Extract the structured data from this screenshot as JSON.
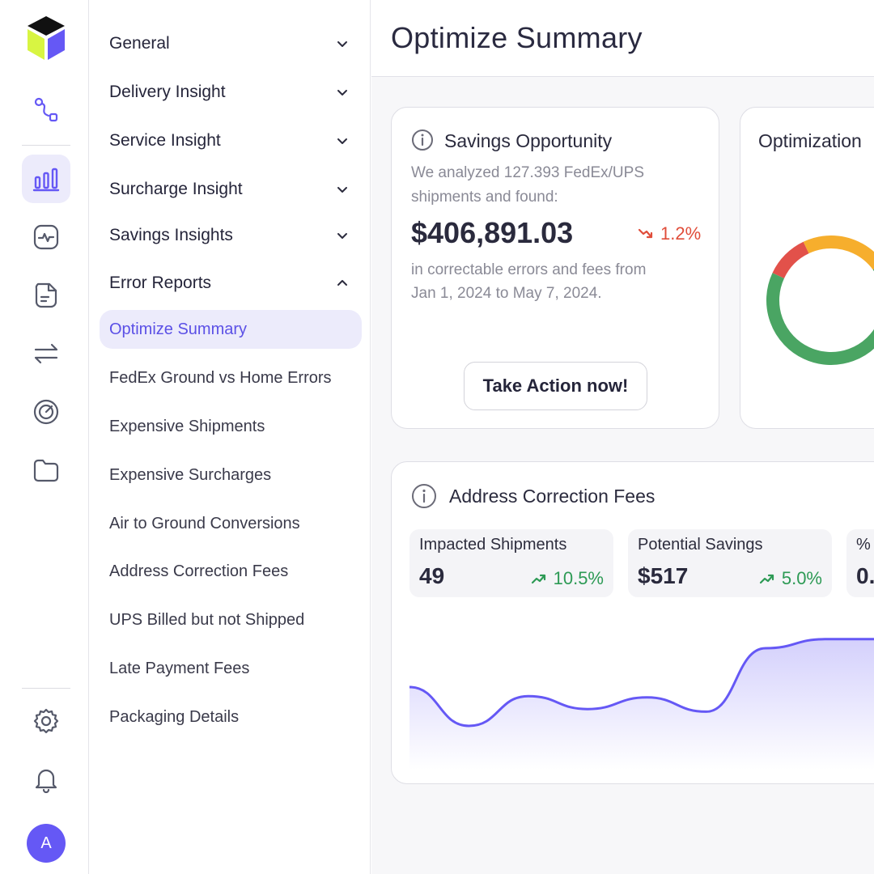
{
  "app": {
    "avatar_initial": "A",
    "accent": "#6558f5"
  },
  "rail": {
    "top_icons": [
      "logo-icon",
      "route-icon"
    ],
    "main_icons": [
      "bar-chart-icon",
      "activity-icon",
      "document-icon",
      "transfer-icon",
      "target-icon",
      "folder-icon"
    ],
    "bottom_icons": [
      "gear-icon",
      "bell-icon"
    ],
    "active": "bar-chart-icon"
  },
  "nav": {
    "sections": [
      {
        "label": "General",
        "expanded": false
      },
      {
        "label": "Delivery Insight",
        "expanded": false
      },
      {
        "label": "Service Insight",
        "expanded": false
      },
      {
        "label": "Surcharge Insight",
        "expanded": false
      },
      {
        "label": "Savings Insights",
        "expanded": false
      },
      {
        "label": "Error Reports",
        "expanded": true
      }
    ],
    "error_reports_items": [
      "Optimize Summary",
      "FedEx Ground vs Home Errors",
      "Expensive Shipments",
      "Expensive Surcharges",
      "Air to Ground Conversions",
      "Address Correction Fees",
      "UPS Billed but not Shipped",
      "Late Payment Fees",
      "Packaging Details"
    ],
    "active_item": "Optimize Summary"
  },
  "header": {
    "title": "Optimize Summary"
  },
  "savings_card": {
    "title": "Savings Opportunity",
    "description_line1": "We analyzed 127.393 FedEx/UPS",
    "description_line2": "shipments and found:",
    "amount": "$406,891.03",
    "change": "1.2%",
    "change_direction": "down",
    "footer_line1": "in correctable errors and fees from",
    "footer_line2": "Jan 1, 2024 to May 7, 2024.",
    "button_label": "Take Action now!"
  },
  "optimization_card": {
    "title": "Optimization",
    "donut_segments": [
      {
        "color": "#e2514a",
        "fraction": 0.11
      },
      {
        "color": "#f6ae2d",
        "fraction": 0.22
      },
      {
        "color": "#4aa563",
        "fraction": 0.67
      }
    ]
  },
  "address_card": {
    "title": "Address Correction Fees",
    "kpis": [
      {
        "label": "Impacted Shipments",
        "value": "49",
        "change": "10.5%",
        "direction": "up"
      },
      {
        "label": "Potential Savings",
        "value": "$517",
        "change": "5.0%",
        "direction": "up"
      },
      {
        "label": "% o",
        "value": "0.",
        "change": "",
        "direction": "up"
      }
    ]
  },
  "chart_data": {
    "type": "area",
    "series": [
      {
        "values": [
          45,
          15,
          38,
          28,
          37,
          26,
          75,
          82,
          82,
          70
        ]
      }
    ],
    "xlabel": "",
    "ylabel": "",
    "ylim": [
      0,
      100
    ],
    "grid": false,
    "color": "#6558f5"
  }
}
